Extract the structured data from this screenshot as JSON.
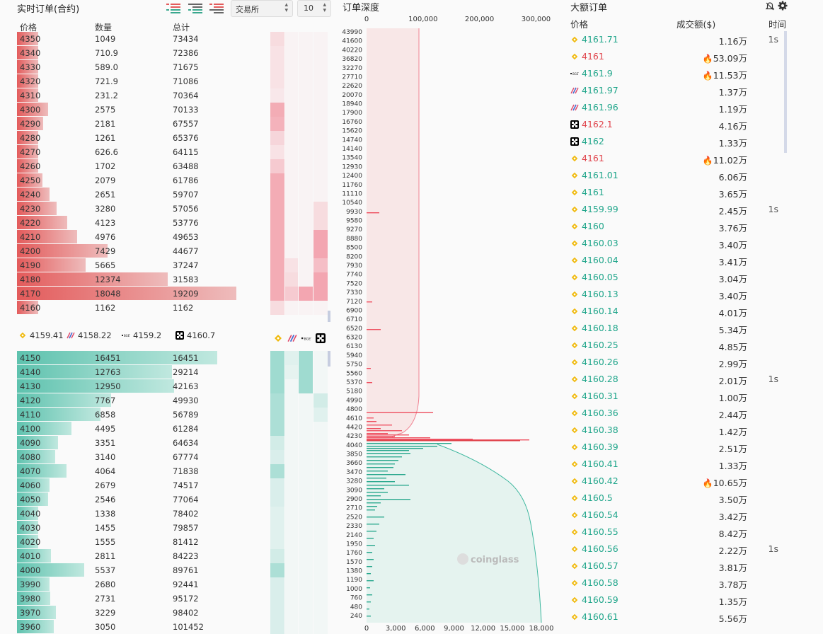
{
  "orderbook": {
    "title": "实时订单(合约)",
    "exchange_select": "交易所",
    "depth_select": "10",
    "headers": {
      "price": "价格",
      "qty": "数量",
      "total": "总计"
    },
    "asks": [
      {
        "price": "4350",
        "qty": "1049",
        "total": "73434",
        "heat": [
          0.15,
          0,
          0,
          0
        ]
      },
      {
        "price": "4340",
        "qty": "710.9",
        "total": "72386",
        "heat": [
          0.1,
          0,
          0,
          0
        ]
      },
      {
        "price": "4330",
        "qty": "589.0",
        "total": "71675",
        "heat": [
          0.1,
          0,
          0,
          0
        ]
      },
      {
        "price": "4320",
        "qty": "721.9",
        "total": "71086",
        "heat": [
          0.1,
          0,
          0,
          0
        ]
      },
      {
        "price": "4310",
        "qty": "231.2",
        "total": "70364",
        "heat": [
          0.05,
          0,
          0,
          0
        ]
      },
      {
        "price": "4300",
        "qty": "2575",
        "total": "70133",
        "heat": [
          0.55,
          0,
          0,
          0
        ]
      },
      {
        "price": "4290",
        "qty": "2181",
        "total": "67557",
        "heat": [
          0.5,
          0,
          0,
          0
        ]
      },
      {
        "price": "4280",
        "qty": "1261",
        "total": "65376",
        "heat": [
          0.2,
          0,
          0,
          0
        ]
      },
      {
        "price": "4270",
        "qty": "626.6",
        "total": "64115",
        "heat": [
          0.1,
          0,
          0,
          0
        ]
      },
      {
        "price": "4260",
        "qty": "1702",
        "total": "63488",
        "heat": [
          0.3,
          0,
          0,
          0
        ]
      },
      {
        "price": "4250",
        "qty": "2079",
        "total": "61786",
        "heat": [
          0.55,
          0,
          0,
          0
        ]
      },
      {
        "price": "4240",
        "qty": "2651",
        "total": "59707",
        "heat": [
          0.55,
          0,
          0,
          0
        ]
      },
      {
        "price": "4230",
        "qty": "3280",
        "total": "57056",
        "heat": [
          0.55,
          0,
          0,
          0.15
        ]
      },
      {
        "price": "4220",
        "qty": "4123",
        "total": "53776",
        "heat": [
          0.55,
          0,
          0,
          0.15
        ]
      },
      {
        "price": "4210",
        "qty": "4976",
        "total": "49653",
        "heat": [
          0.55,
          0,
          0,
          0.6
        ]
      },
      {
        "price": "4200",
        "qty": "7429",
        "total": "44677",
        "heat": [
          0.55,
          0,
          0,
          0.6
        ]
      },
      {
        "price": "4190",
        "qty": "5665",
        "total": "37247",
        "heat": [
          0.55,
          0.1,
          0,
          0.4
        ]
      },
      {
        "price": "4180",
        "qty": "12374",
        "total": "31583",
        "heat": [
          0.55,
          0.15,
          0,
          0.6
        ]
      },
      {
        "price": "4170",
        "qty": "18048",
        "total": "19209",
        "heat": [
          0.55,
          0.3,
          0.6,
          0.6
        ]
      },
      {
        "price": "4160",
        "qty": "1162",
        "total": "1162",
        "heat": [
          0.15,
          0,
          0,
          0
        ]
      }
    ],
    "exchange_prices": [
      {
        "icon": "binance-icon",
        "price": "4159.41"
      },
      {
        "icon": "bybit-icon",
        "price": "4158.22"
      },
      {
        "icon": "bitget-icon",
        "price": "4159.2"
      },
      {
        "icon": "okx-icon",
        "price": "4160.7"
      }
    ],
    "bids": [
      {
        "price": "4150",
        "qty": "16451",
        "total": "16451",
        "heat": [
          0.6,
          0.1,
          0.6,
          0
        ]
      },
      {
        "price": "4140",
        "qty": "12763",
        "total": "29214",
        "heat": [
          0.6,
          0.05,
          0.6,
          0
        ]
      },
      {
        "price": "4130",
        "qty": "12950",
        "total": "42163",
        "heat": [
          0.6,
          0,
          0.6,
          0
        ]
      },
      {
        "price": "4120",
        "qty": "7767",
        "total": "49930",
        "heat": [
          0.5,
          0,
          0,
          0.2
        ]
      },
      {
        "price": "4110",
        "qty": "6858",
        "total": "56789",
        "heat": [
          0.5,
          0,
          0,
          0.1
        ]
      },
      {
        "price": "4100",
        "qty": "4495",
        "total": "61284",
        "heat": [
          0.5,
          0,
          0,
          0
        ]
      },
      {
        "price": "4090",
        "qty": "3351",
        "total": "64634",
        "heat": [
          0.2,
          0,
          0,
          0
        ]
      },
      {
        "price": "4080",
        "qty": "3140",
        "total": "67774",
        "heat": [
          0.15,
          0,
          0,
          0
        ]
      },
      {
        "price": "4070",
        "qty": "4064",
        "total": "71838",
        "heat": [
          0.5,
          0,
          0,
          0
        ]
      },
      {
        "price": "4060",
        "qty": "2679",
        "total": "74517",
        "heat": [
          0.15,
          0,
          0,
          0
        ]
      },
      {
        "price": "4050",
        "qty": "2546",
        "total": "77064",
        "heat": [
          0.15,
          0,
          0,
          0
        ]
      },
      {
        "price": "4040",
        "qty": "1338",
        "total": "78402",
        "heat": [
          0.1,
          0,
          0,
          0
        ]
      },
      {
        "price": "4030",
        "qty": "1455",
        "total": "79857",
        "heat": [
          0.1,
          0,
          0,
          0
        ]
      },
      {
        "price": "4020",
        "qty": "1555",
        "total": "81412",
        "heat": [
          0.1,
          0,
          0,
          0
        ]
      },
      {
        "price": "4010",
        "qty": "2811",
        "total": "84223",
        "heat": [
          0.2,
          0,
          0,
          0
        ]
      },
      {
        "price": "4000",
        "qty": "5537",
        "total": "89761",
        "heat": [
          0.5,
          0,
          0,
          0
        ]
      },
      {
        "price": "3990",
        "qty": "2680",
        "total": "92441",
        "heat": [
          0.15,
          0,
          0,
          0
        ]
      },
      {
        "price": "3980",
        "qty": "2731",
        "total": "95172",
        "heat": [
          0.15,
          0,
          0,
          0
        ]
      },
      {
        "price": "3970",
        "qty": "3229",
        "total": "98402",
        "heat": [
          0.15,
          0,
          0,
          0
        ]
      },
      {
        "price": "3960",
        "qty": "3050",
        "total": "101452",
        "heat": [
          0.15,
          0,
          0,
          0
        ]
      }
    ],
    "colors": {
      "ask": "#e35b5b",
      "bid": "#5ec2ae"
    }
  },
  "chart_data": {
    "type": "area",
    "title": "订单深度",
    "top_axis_ticks": [
      "0",
      "100,000",
      "200,000",
      "300,000"
    ],
    "bottom_axis_ticks": [
      "0",
      "3,000",
      "6,000",
      "9,000",
      "12,000",
      "15,000",
      "18,000"
    ],
    "price_ticks": [
      "43990",
      "41600",
      "40220",
      "36820",
      "32270",
      "27710",
      "22620",
      "20070",
      "18940",
      "17900",
      "16760",
      "15620",
      "14740",
      "14140",
      "13540",
      "12930",
      "12400",
      "11760",
      "11110",
      "10540",
      "9930",
      "9580",
      "9270",
      "8880",
      "8500",
      "8200",
      "7930",
      "7740",
      "7520",
      "7330",
      "7120",
      "6900",
      "6710",
      "6520",
      "6320",
      "6130",
      "5940",
      "5750",
      "5560",
      "5370",
      "5180",
      "4990",
      "4800",
      "4610",
      "4420",
      "4230",
      "4040",
      "3850",
      "3660",
      "3470",
      "3280",
      "3090",
      "2900",
      "2710",
      "2520",
      "2330",
      "2140",
      "1950",
      "1760",
      "1570",
      "1380",
      "1190",
      "1000",
      "760",
      "480",
      "240"
    ],
    "watermark": "coinglass",
    "colors": {
      "ask": "#f08090",
      "bid": "#40b8a0"
    }
  },
  "big_orders": {
    "title": "大额订单",
    "headers": {
      "price": "价格",
      "amount": "成交额($)",
      "time": "时间"
    },
    "rows": [
      {
        "icon": "binance-icon",
        "price": "4161.71",
        "side": "buy",
        "amount": "1.16万",
        "fire": false,
        "time": "1s"
      },
      {
        "icon": "binance-icon",
        "price": "4161",
        "side": "sell",
        "amount": "53.09万",
        "fire": true,
        "time": ""
      },
      {
        "icon": "bitget-icon",
        "price": "4161.9",
        "side": "buy",
        "amount": "11.53万",
        "fire": true,
        "time": ""
      },
      {
        "icon": "bybit-icon",
        "price": "4161.97",
        "side": "buy",
        "amount": "1.37万",
        "fire": false,
        "time": ""
      },
      {
        "icon": "bybit-icon",
        "price": "4161.96",
        "side": "buy",
        "amount": "1.19万",
        "fire": false,
        "time": ""
      },
      {
        "icon": "okx-icon",
        "price": "4162.1",
        "side": "sell",
        "amount": "4.16万",
        "fire": false,
        "time": ""
      },
      {
        "icon": "okx-icon",
        "price": "4162",
        "side": "buy",
        "amount": "1.33万",
        "fire": false,
        "time": ""
      },
      {
        "icon": "binance-icon",
        "price": "4161",
        "side": "sell",
        "amount": "11.02万",
        "fire": true,
        "time": ""
      },
      {
        "icon": "binance-icon",
        "price": "4161.01",
        "side": "buy",
        "amount": "6.06万",
        "fire": false,
        "time": ""
      },
      {
        "icon": "binance-icon",
        "price": "4161",
        "side": "buy",
        "amount": "3.65万",
        "fire": false,
        "time": ""
      },
      {
        "icon": "binance-icon",
        "price": "4159.99",
        "side": "buy",
        "amount": "2.45万",
        "fire": false,
        "time": "1s"
      },
      {
        "icon": "binance-icon",
        "price": "4160",
        "side": "buy",
        "amount": "3.76万",
        "fire": false,
        "time": ""
      },
      {
        "icon": "binance-icon",
        "price": "4160.03",
        "side": "buy",
        "amount": "3.40万",
        "fire": false,
        "time": ""
      },
      {
        "icon": "binance-icon",
        "price": "4160.04",
        "side": "buy",
        "amount": "3.41万",
        "fire": false,
        "time": ""
      },
      {
        "icon": "binance-icon",
        "price": "4160.05",
        "side": "buy",
        "amount": "3.04万",
        "fire": false,
        "time": ""
      },
      {
        "icon": "binance-icon",
        "price": "4160.13",
        "side": "buy",
        "amount": "3.40万",
        "fire": false,
        "time": ""
      },
      {
        "icon": "binance-icon",
        "price": "4160.14",
        "side": "buy",
        "amount": "4.01万",
        "fire": false,
        "time": ""
      },
      {
        "icon": "binance-icon",
        "price": "4160.18",
        "side": "buy",
        "amount": "5.34万",
        "fire": false,
        "time": ""
      },
      {
        "icon": "binance-icon",
        "price": "4160.25",
        "side": "buy",
        "amount": "4.85万",
        "fire": false,
        "time": ""
      },
      {
        "icon": "binance-icon",
        "price": "4160.26",
        "side": "buy",
        "amount": "2.99万",
        "fire": false,
        "time": ""
      },
      {
        "icon": "binance-icon",
        "price": "4160.28",
        "side": "buy",
        "amount": "2.01万",
        "fire": false,
        "time": "1s"
      },
      {
        "icon": "binance-icon",
        "price": "4160.31",
        "side": "buy",
        "amount": "1.00万",
        "fire": false,
        "time": ""
      },
      {
        "icon": "binance-icon",
        "price": "4160.36",
        "side": "buy",
        "amount": "2.44万",
        "fire": false,
        "time": ""
      },
      {
        "icon": "binance-icon",
        "price": "4160.38",
        "side": "buy",
        "amount": "1.42万",
        "fire": false,
        "time": ""
      },
      {
        "icon": "binance-icon",
        "price": "4160.39",
        "side": "buy",
        "amount": "2.51万",
        "fire": false,
        "time": ""
      },
      {
        "icon": "binance-icon",
        "price": "4160.41",
        "side": "buy",
        "amount": "1.33万",
        "fire": false,
        "time": ""
      },
      {
        "icon": "binance-icon",
        "price": "4160.42",
        "side": "buy",
        "amount": "10.65万",
        "fire": true,
        "time": ""
      },
      {
        "icon": "binance-icon",
        "price": "4160.5",
        "side": "buy",
        "amount": "3.50万",
        "fire": false,
        "time": ""
      },
      {
        "icon": "binance-icon",
        "price": "4160.54",
        "side": "buy",
        "amount": "3.42万",
        "fire": false,
        "time": ""
      },
      {
        "icon": "binance-icon",
        "price": "4160.55",
        "side": "buy",
        "amount": "8.42万",
        "fire": false,
        "time": ""
      },
      {
        "icon": "binance-icon",
        "price": "4160.56",
        "side": "buy",
        "amount": "2.22万",
        "fire": false,
        "time": "1s"
      },
      {
        "icon": "binance-icon",
        "price": "4160.57",
        "side": "buy",
        "amount": "3.81万",
        "fire": false,
        "time": ""
      },
      {
        "icon": "binance-icon",
        "price": "4160.58",
        "side": "buy",
        "amount": "3.78万",
        "fire": false,
        "time": ""
      },
      {
        "icon": "binance-icon",
        "price": "4160.59",
        "side": "buy",
        "amount": "1.35万",
        "fire": false,
        "time": ""
      },
      {
        "icon": "binance-icon",
        "price": "4160.61",
        "side": "buy",
        "amount": "5.56万",
        "fire": false,
        "time": ""
      }
    ],
    "mute_icon": "bell-off-icon",
    "settings_icon": "gear-icon"
  }
}
